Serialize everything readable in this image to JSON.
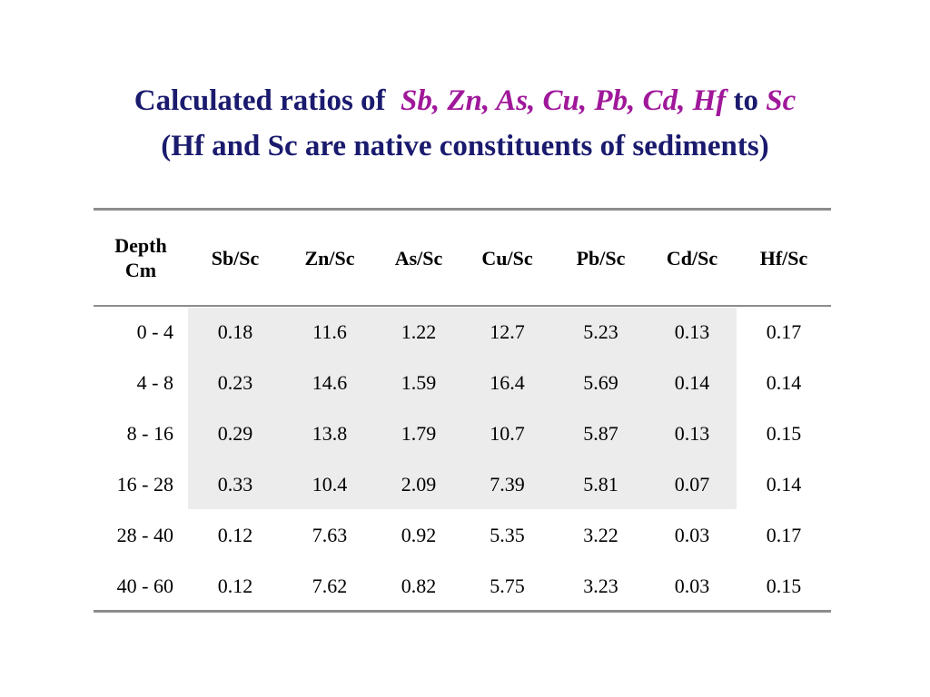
{
  "title": {
    "prefix": "Calculated ratios of",
    "elements": "Sb, Zn, As, Cu, Pb, Cd, Hf",
    "to": "to",
    "reference": "Sc",
    "line2": "(Hf and Sc are native constituents of sediments)"
  },
  "table": {
    "headers": {
      "depth_line1": "Depth",
      "depth_line2": "Cm",
      "cols": [
        "Sb/Sc",
        "Zn/Sc",
        "As/Sc",
        "Cu/Sc",
        "Pb/Sc",
        "Cd/Sc",
        "Hf/Sc"
      ]
    },
    "rows": [
      {
        "depth": "0 - 4",
        "v": [
          "0.18",
          "11.6",
          "1.22",
          "12.7",
          "5.23",
          "0.13",
          "0.17"
        ]
      },
      {
        "depth": "4 - 8",
        "v": [
          "0.23",
          "14.6",
          "1.59",
          "16.4",
          "5.69",
          "0.14",
          "0.14"
        ]
      },
      {
        "depth": "8 - 16",
        "v": [
          "0.29",
          "13.8",
          "1.79",
          "10.7",
          "5.87",
          "0.13",
          "0.15"
        ]
      },
      {
        "depth": "16 - 28",
        "v": [
          "0.33",
          "10.4",
          "2.09",
          "7.39",
          "5.81",
          "0.07",
          "0.14"
        ]
      },
      {
        "depth": "28 - 40",
        "v": [
          "0.12",
          "7.63",
          "0.92",
          "5.35",
          "3.22",
          "0.03",
          "0.17"
        ]
      },
      {
        "depth": "40 - 60",
        "v": [
          "0.12",
          "7.62",
          "0.82",
          "5.75",
          "3.23",
          "0.03",
          "0.15"
        ]
      }
    ],
    "shade_color": "#ececec",
    "title_color": "#1a1a6e",
    "accent_color": "#a0189a"
  }
}
